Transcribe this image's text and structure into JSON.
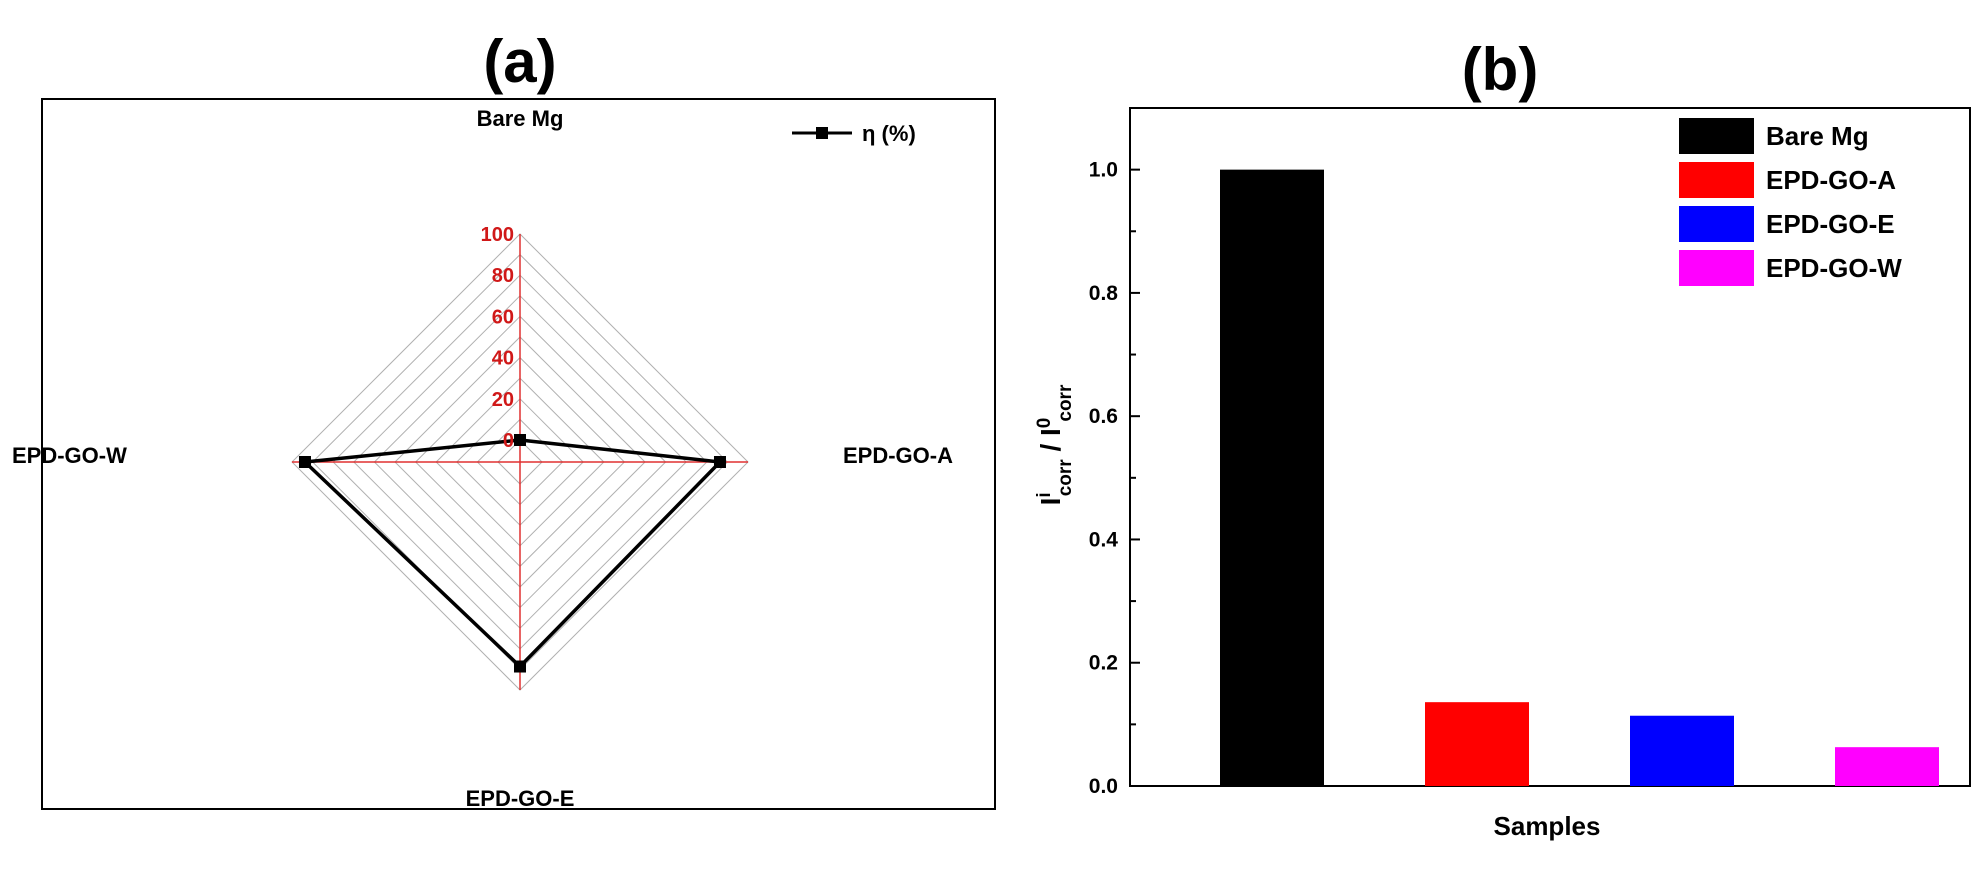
{
  "chart_data": [
    {
      "type": "radar",
      "panel_label": "(a)",
      "axes": [
        "Bare Mg",
        "EPD-GO-A",
        "EPD-GO-E",
        "EPD-GO-W"
      ],
      "r_ticks": [
        "0",
        "20",
        "40",
        "60",
        "80",
        "100"
      ],
      "rlim": [
        0,
        100
      ],
      "grid": true,
      "legend_position": "top-right",
      "series": [
        {
          "name": "η (%)",
          "values": [
            0,
            86.4,
            88.6,
            93.7
          ],
          "color": "#000000"
        }
      ],
      "colors": {
        "axis_lines": "#e03030",
        "tick_labels": "#d01818",
        "grid": "#b0b0b0"
      }
    },
    {
      "type": "bar",
      "panel_label": "(b)",
      "categories": [
        "Bare Mg",
        "EPD-GO-A",
        "EPD-GO-E",
        "EPD-GO-W"
      ],
      "values": [
        1.0,
        0.136,
        0.114,
        0.063
      ],
      "colors": [
        "#000000",
        "#ff0000",
        "#0000ff",
        "#ff00ff"
      ],
      "xlabel": "Samples",
      "ylabel": {
        "base1": "I",
        "sup1": "i",
        "sub1": "corr",
        "sep": " / ",
        "base2": "I",
        "sup2": "0",
        "sub2": "corr"
      },
      "ylim": [
        0,
        1.1
      ],
      "yticks": [
        "0.0",
        "0.2",
        "0.4",
        "0.6",
        "0.8",
        "1.0"
      ],
      "legend_position": "top-right",
      "grid": false
    }
  ]
}
